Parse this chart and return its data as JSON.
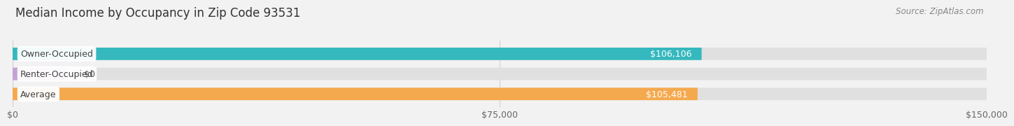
{
  "title": "Median Income by Occupancy in Zip Code 93531",
  "source": "Source: ZipAtlas.com",
  "categories": [
    "Owner-Occupied",
    "Renter-Occupied",
    "Average"
  ],
  "values": [
    106106,
    0,
    105481
  ],
  "bar_colors": [
    "#35b8be",
    "#c4a3d4",
    "#f5a94e"
  ],
  "bar_labels": [
    "$106,106",
    "$0",
    "$105,481"
  ],
  "xlim": [
    0,
    150000
  ],
  "xticks": [
    0,
    75000,
    150000
  ],
  "xtick_labels": [
    "$0",
    "$75,000",
    "$150,000"
  ],
  "bg_color": "#f2f2f2",
  "bar_bg_color": "#e0e0e0",
  "title_fontsize": 12,
  "source_fontsize": 8.5,
  "label_fontsize": 9,
  "tick_fontsize": 9,
  "bar_height": 0.62,
  "renter_stub": 8500,
  "label_color_inside": "#ffffff",
  "label_color_outside": "#555555",
  "cat_label_color": "#444444",
  "grid_color": "#cccccc",
  "title_color": "#333333",
  "source_color": "#888888"
}
